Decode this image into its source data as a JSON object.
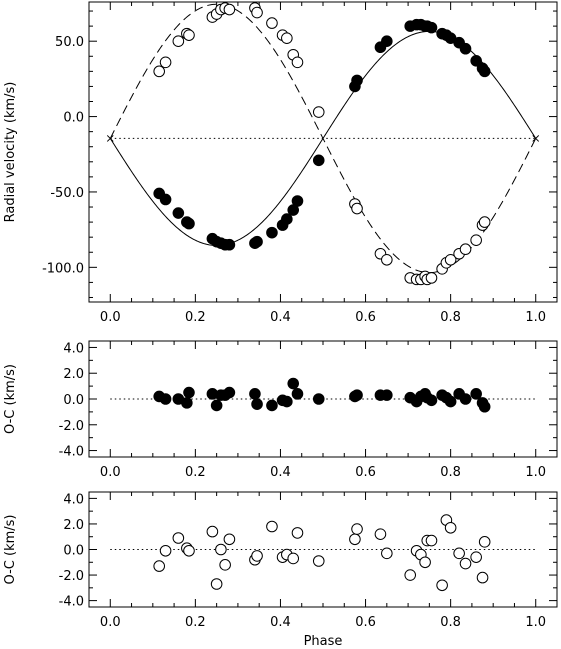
{
  "chart_data": [
    {
      "type": "scatter",
      "ylabel": "Radial velocity  (km/s)",
      "xlim": [
        -0.05,
        1.05
      ],
      "ylim": [
        -123,
        76
      ],
      "x_ticks": [
        "0.0",
        "0.2",
        "0.4",
        "0.6",
        "0.8",
        "1.0"
      ],
      "x_tick_values": [
        0.0,
        0.2,
        0.4,
        0.6,
        0.8,
        1.0
      ],
      "y_ticks": [
        "-100.0",
        "-50.0",
        "0.0",
        "50.0"
      ],
      "y_tick_values": [
        -100,
        -50,
        0,
        50
      ],
      "systemic_velocity": -14.5,
      "orbit": {
        "primary_amplitude": 71,
        "secondary_amplitude": 89,
        "primary_line": "solid",
        "secondary_line": "dashed",
        "systemic_line": "dotted"
      },
      "series": [
        {
          "marker": "filled-circle",
          "x": [
            0.115,
            0.13,
            0.16,
            0.18,
            0.185,
            0.24,
            0.25,
            0.26,
            0.27,
            0.28,
            0.34,
            0.345,
            0.38,
            0.405,
            0.415,
            0.43,
            0.44,
            0.49,
            0.575,
            0.58,
            0.635,
            0.65,
            0.705,
            0.72,
            0.73,
            0.74,
            0.745,
            0.755,
            0.78,
            0.79,
            0.8,
            0.82,
            0.835,
            0.86,
            0.875,
            0.88
          ],
          "y": [
            -51,
            -55,
            -64,
            -70,
            -71,
            -81,
            -83,
            -84,
            -85,
            -85,
            -84,
            -83,
            -77,
            -72,
            -68,
            -62,
            -56,
            -29,
            20,
            24,
            46,
            50,
            60,
            61,
            61,
            60,
            60,
            59,
            55,
            54,
            52,
            49,
            45,
            37,
            32,
            30
          ]
        },
        {
          "marker": "open-circle",
          "x": [
            0.115,
            0.13,
            0.16,
            0.18,
            0.185,
            0.24,
            0.25,
            0.26,
            0.27,
            0.28,
            0.34,
            0.345,
            0.38,
            0.405,
            0.415,
            0.43,
            0.44,
            0.49,
            0.575,
            0.58,
            0.635,
            0.65,
            0.705,
            0.72,
            0.73,
            0.74,
            0.745,
            0.755,
            0.78,
            0.79,
            0.8,
            0.82,
            0.835,
            0.86,
            0.875,
            0.88
          ],
          "y": [
            30,
            36,
            50,
            55,
            54,
            66,
            68,
            71,
            72,
            71,
            72,
            69,
            62,
            54,
            52,
            41,
            36,
            3,
            -58,
            -61,
            -91,
            -95,
            -107,
            -108,
            -108,
            -106,
            -108,
            -107,
            -101,
            -97,
            -95,
            -91,
            -88,
            -82,
            -72,
            -70
          ]
        }
      ]
    },
    {
      "type": "scatter",
      "ylabel": "O-C  (km/s)",
      "xlim": [
        -0.05,
        1.05
      ],
      "ylim": [
        -4.5,
        4.5
      ],
      "x_ticks": [
        "0.0",
        "0.2",
        "0.4",
        "0.6",
        "0.8",
        "1.0"
      ],
      "x_tick_values": [
        0.0,
        0.2,
        0.4,
        0.6,
        0.8,
        1.0
      ],
      "y_ticks": [
        "-4.0",
        "-2.0",
        "0.0",
        "2.0",
        "4.0"
      ],
      "y_tick_values": [
        -4,
        -2,
        0,
        2,
        4
      ],
      "zero_line": "dotted",
      "series": [
        {
          "marker": "filled-circle",
          "x": [
            0.115,
            0.13,
            0.16,
            0.18,
            0.185,
            0.24,
            0.25,
            0.26,
            0.27,
            0.28,
            0.34,
            0.345,
            0.38,
            0.405,
            0.415,
            0.43,
            0.44,
            0.49,
            0.575,
            0.58,
            0.635,
            0.65,
            0.705,
            0.72,
            0.73,
            0.74,
            0.745,
            0.755,
            0.78,
            0.79,
            0.8,
            0.82,
            0.835,
            0.86,
            0.875,
            0.88
          ],
          "y": [
            0.2,
            0.0,
            0.0,
            -0.3,
            0.5,
            0.4,
            -0.5,
            0.3,
            0.3,
            0.5,
            0.4,
            -0.4,
            -0.5,
            -0.1,
            -0.2,
            1.2,
            0.4,
            0.0,
            0.2,
            0.3,
            0.3,
            0.3,
            0.1,
            -0.2,
            0.2,
            0.4,
            0.1,
            -0.1,
            0.3,
            0.1,
            -0.2,
            0.4,
            0.0,
            0.4,
            -0.3,
            -0.6
          ]
        }
      ]
    },
    {
      "type": "scatter",
      "xlabel": "Phase",
      "ylabel": "O-C  (km/s)",
      "xlim": [
        -0.05,
        1.05
      ],
      "ylim": [
        -4.5,
        4.5
      ],
      "x_ticks": [
        "0.0",
        "0.2",
        "0.4",
        "0.6",
        "0.8",
        "1.0"
      ],
      "x_tick_values": [
        0.0,
        0.2,
        0.4,
        0.6,
        0.8,
        1.0
      ],
      "y_ticks": [
        "-4.0",
        "-2.0",
        "0.0",
        "2.0",
        "4.0"
      ],
      "y_tick_values": [
        -4,
        -2,
        0,
        2,
        4
      ],
      "zero_line": "dotted",
      "series": [
        {
          "marker": "open-circle",
          "x": [
            0.115,
            0.13,
            0.16,
            0.18,
            0.185,
            0.24,
            0.25,
            0.26,
            0.27,
            0.28,
            0.34,
            0.345,
            0.38,
            0.405,
            0.415,
            0.43,
            0.44,
            0.49,
            0.575,
            0.58,
            0.635,
            0.65,
            0.705,
            0.72,
            0.73,
            0.74,
            0.745,
            0.755,
            0.78,
            0.79,
            0.8,
            0.82,
            0.835,
            0.86,
            0.875,
            0.88
          ],
          "y": [
            -1.3,
            -0.1,
            0.9,
            0.1,
            -0.1,
            1.4,
            -2.7,
            0.0,
            -1.2,
            0.8,
            -0.8,
            -0.5,
            1.8,
            -0.6,
            -0.4,
            -0.7,
            1.3,
            -0.9,
            0.8,
            1.6,
            1.2,
            -0.3,
            -2.0,
            -0.1,
            -0.4,
            -1.0,
            0.7,
            0.7,
            -2.8,
            2.3,
            1.7,
            -0.3,
            -1.1,
            -0.6,
            -2.2,
            0.6
          ]
        }
      ]
    }
  ]
}
